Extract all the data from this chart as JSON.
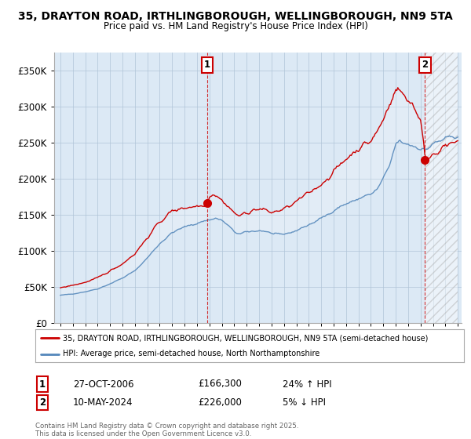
{
  "title_line1": "35, DRAYTON ROAD, IRTHLINGBOROUGH, WELLINGBOROUGH, NN9 5TA",
  "title_line2": "Price paid vs. HM Land Registry's House Price Index (HPI)",
  "bg_color": "#ffffff",
  "plot_bg_color": "#dce9f5",
  "grid_color": "#b0c4d8",
  "red_color": "#cc0000",
  "blue_color": "#5588bb",
  "hatch_color": "#c0c0c0",
  "ylim": [
    0,
    375000
  ],
  "yticks": [
    0,
    50000,
    100000,
    150000,
    200000,
    250000,
    300000,
    350000
  ],
  "ytick_labels": [
    "£0",
    "£50K",
    "£100K",
    "£150K",
    "£200K",
    "£250K",
    "£300K",
    "£350K"
  ],
  "xmin": 1995,
  "xmax": 2027,
  "legend_line1": "35, DRAYTON ROAD, IRTHLINGBOROUGH, WELLINGBOROUGH, NN9 5TA (semi-detached house)",
  "legend_line2": "HPI: Average price, semi-detached house, North Northamptonshire",
  "annotation1_label": "1",
  "annotation1_date": "27-OCT-2006",
  "annotation1_price": "£166,300",
  "annotation1_hpi": "24% ↑ HPI",
  "annotation2_label": "2",
  "annotation2_date": "10-MAY-2024",
  "annotation2_price": "£226,000",
  "annotation2_hpi": "5% ↓ HPI",
  "footnote": "Contains HM Land Registry data © Crown copyright and database right 2025.\nThis data is licensed under the Open Government Licence v3.0.",
  "sale1_year": 2006.83,
  "sale1_value": 166300,
  "sale2_year": 2024.36,
  "sale2_value": 226000
}
